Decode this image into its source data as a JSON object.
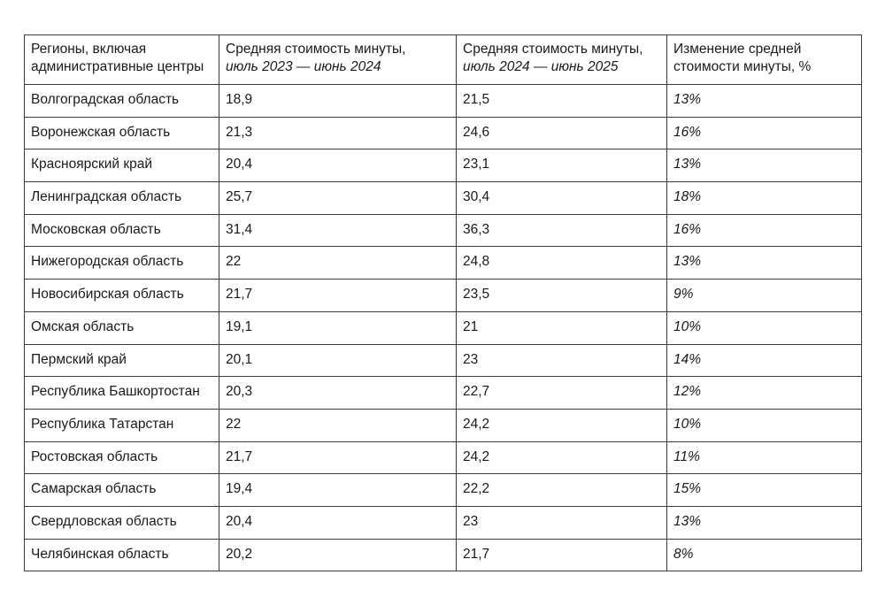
{
  "chart_data": {
    "type": "table",
    "columns": [
      {
        "main": "Регионы, включая административные центры",
        "sub": ""
      },
      {
        "main": "Средняя стоимость минуты,",
        "sub": "июль 2023 — июнь 2024"
      },
      {
        "main": "Средняя стоимость минуты,",
        "sub": "июль 2024 — июнь 2025"
      },
      {
        "main": "Изменение средней стоимости минуты, %",
        "sub": ""
      }
    ],
    "rows": [
      {
        "region": "Волгоградская область",
        "v2023": "18,9",
        "v2024": "21,5",
        "change": "13%"
      },
      {
        "region": "Воронежская область",
        "v2023": "21,3",
        "v2024": "24,6",
        "change": "16%"
      },
      {
        "region": "Красноярский край",
        "v2023": "20,4",
        "v2024": "23,1",
        "change": "13%"
      },
      {
        "region": "Ленинградская область",
        "v2023": "25,7",
        "v2024": "30,4",
        "change": "18%"
      },
      {
        "region": "Московская область",
        "v2023": "31,4",
        "v2024": "36,3",
        "change": "16%"
      },
      {
        "region": "Нижегородская область",
        "v2023": "22",
        "v2024": "24,8",
        "change": "13%"
      },
      {
        "region": "Новосибирская область",
        "v2023": "21,7",
        "v2024": "23,5",
        "change": "9%"
      },
      {
        "region": "Омская область",
        "v2023": "19,1",
        "v2024": "21",
        "change": "10%"
      },
      {
        "region": "Пермский край",
        "v2023": "20,1",
        "v2024": "23",
        "change": "14%"
      },
      {
        "region": "Республика Башкортостан",
        "v2023": "20,3",
        "v2024": "22,7",
        "change": "12%"
      },
      {
        "region": "Республика Татарстан",
        "v2023": "22",
        "v2024": "24,2",
        "change": "10%"
      },
      {
        "region": "Ростовская область",
        "v2023": "21,7",
        "v2024": "24,2",
        "change": "11%"
      },
      {
        "region": "Самарская область",
        "v2023": "19,4",
        "v2024": "22,2",
        "change": "15%"
      },
      {
        "region": "Свердловская область",
        "v2023": "20,4",
        "v2024": "23",
        "change": "13%"
      },
      {
        "region": "Челябинская область",
        "v2023": "20,2",
        "v2024": "21,7",
        "change": "8%"
      }
    ]
  }
}
